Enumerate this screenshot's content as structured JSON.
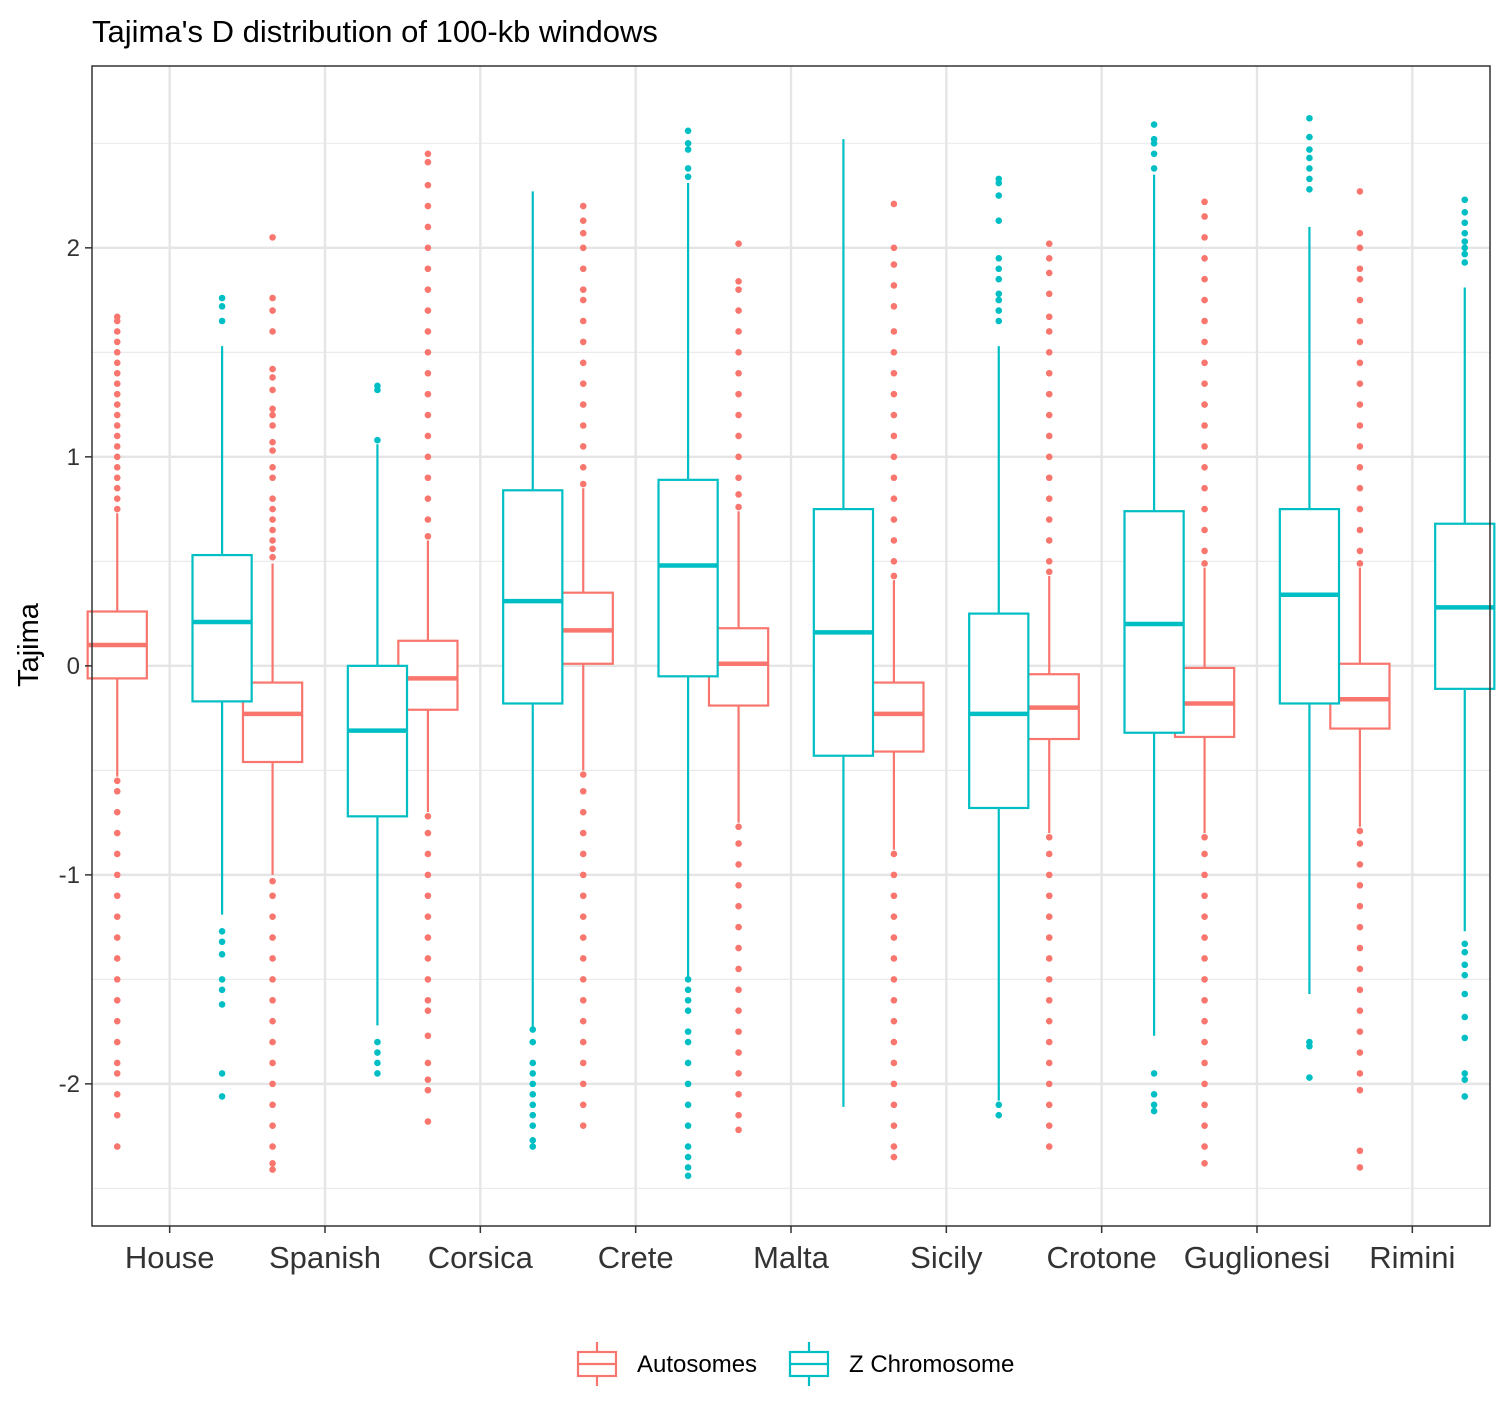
{
  "chart_data": {
    "type": "boxplot",
    "title": "Tajima's D distribution of 100-kb windows",
    "xlabel": "",
    "ylabel": "Tajima",
    "ylim": [
      -2.68,
      2.87
    ],
    "yticks": [
      -2,
      -1,
      0,
      1,
      2
    ],
    "ytick_labels": [
      "-2",
      "-1",
      "0",
      "1",
      "2"
    ],
    "grid": true,
    "legend_position": "bottom",
    "categories": [
      "House",
      "Spanish",
      "Corsica",
      "Crete",
      "Malta",
      "Sicily",
      "Crotone",
      "Guglionesi",
      "Rimini"
    ],
    "series": [
      {
        "name": "Autosomes",
        "color": "#F8766D",
        "boxes": [
          {
            "min": -0.53,
            "q1": -0.06,
            "median": 0.1,
            "q3": 0.26,
            "max": 0.73,
            "outliers_high": [
              0.75,
              0.8,
              0.85,
              0.9,
              0.95,
              1.0,
              1.05,
              1.1,
              1.15,
              1.2,
              1.25,
              1.3,
              1.35,
              1.4,
              1.45,
              1.5,
              1.55,
              1.6,
              1.65,
              1.67
            ],
            "outliers_low": [
              -0.55,
              -0.6,
              -0.7,
              -0.8,
              -0.9,
              -1.0,
              -1.1,
              -1.2,
              -1.3,
              -1.4,
              -1.5,
              -1.6,
              -1.7,
              -1.8,
              -1.9,
              -1.95,
              -2.05,
              -2.15,
              -2.3
            ]
          },
          {
            "min": -1.0,
            "q1": -0.46,
            "median": -0.23,
            "q3": -0.08,
            "max": 0.49,
            "outliers_high": [
              0.52,
              0.56,
              0.6,
              0.65,
              0.7,
              0.75,
              0.8,
              0.9,
              0.95,
              1.03,
              1.07,
              1.15,
              1.2,
              1.23,
              1.32,
              1.38,
              1.42,
              1.6,
              1.7,
              1.76,
              2.05
            ],
            "outliers_low": [
              -1.03,
              -1.1,
              -1.2,
              -1.3,
              -1.4,
              -1.5,
              -1.6,
              -1.7,
              -1.8,
              -1.9,
              -2.0,
              -2.1,
              -2.2,
              -2.3,
              -2.38,
              -2.41
            ]
          },
          {
            "min": -0.7,
            "q1": -0.21,
            "median": -0.06,
            "q3": 0.12,
            "max": 0.6,
            "outliers_high": [
              0.62,
              0.7,
              0.8,
              0.9,
              1.0,
              1.1,
              1.2,
              1.3,
              1.4,
              1.5,
              1.6,
              1.7,
              1.8,
              1.9,
              2.0,
              2.1,
              2.2,
              2.3,
              2.41,
              2.45
            ],
            "outliers_low": [
              -0.72,
              -0.8,
              -0.9,
              -1.0,
              -1.1,
              -1.2,
              -1.3,
              -1.4,
              -1.5,
              -1.6,
              -1.65,
              -1.77,
              -1.9,
              -1.98,
              -2.03,
              -2.18
            ]
          },
          {
            "min": -0.5,
            "q1": 0.01,
            "median": 0.17,
            "q3": 0.35,
            "max": 0.85,
            "outliers_high": [
              0.87,
              0.95,
              1.05,
              1.15,
              1.25,
              1.35,
              1.45,
              1.55,
              1.65,
              1.75,
              1.8,
              1.9,
              2.0,
              2.07,
              2.13,
              2.2
            ],
            "outliers_low": [
              -0.52,
              -0.6,
              -0.7,
              -0.8,
              -0.9,
              -1.0,
              -1.1,
              -1.2,
              -1.3,
              -1.4,
              -1.5,
              -1.6,
              -1.7,
              -1.8,
              -1.9,
              -2.0,
              -2.1,
              -2.2
            ]
          },
          {
            "min": -0.75,
            "q1": -0.19,
            "median": 0.01,
            "q3": 0.18,
            "max": 0.74,
            "outliers_high": [
              0.76,
              0.82,
              0.9,
              1.0,
              1.1,
              1.2,
              1.3,
              1.4,
              1.5,
              1.6,
              1.7,
              1.8,
              1.84,
              2.02
            ],
            "outliers_low": [
              -0.77,
              -0.85,
              -0.95,
              -1.05,
              -1.15,
              -1.25,
              -1.35,
              -1.45,
              -1.55,
              -1.65,
              -1.75,
              -1.85,
              -1.95,
              -2.05,
              -2.15,
              -2.22
            ]
          },
          {
            "min": -0.88,
            "q1": -0.41,
            "median": -0.23,
            "q3": -0.08,
            "max": 0.41,
            "outliers_high": [
              0.43,
              0.5,
              0.6,
              0.7,
              0.8,
              0.9,
              1.0,
              1.1,
              1.2,
              1.3,
              1.4,
              1.5,
              1.6,
              1.72,
              1.82,
              1.92,
              2.0,
              2.21
            ],
            "outliers_low": [
              -0.9,
              -1.0,
              -1.1,
              -1.2,
              -1.3,
              -1.4,
              -1.5,
              -1.6,
              -1.7,
              -1.8,
              -1.9,
              -2.0,
              -2.1,
              -2.2,
              -2.3,
              -2.35
            ]
          },
          {
            "min": -0.8,
            "q1": -0.35,
            "median": -0.2,
            "q3": -0.04,
            "max": 0.43,
            "outliers_high": [
              0.45,
              0.5,
              0.6,
              0.7,
              0.8,
              0.9,
              1.0,
              1.1,
              1.2,
              1.3,
              1.4,
              1.5,
              1.6,
              1.67,
              1.78,
              1.88,
              1.95,
              2.02
            ],
            "outliers_low": [
              -0.82,
              -0.9,
              -1.0,
              -1.1,
              -1.2,
              -1.3,
              -1.4,
              -1.5,
              -1.6,
              -1.7,
              -1.8,
              -1.9,
              -2.0,
              -2.1,
              -2.2,
              -2.3
            ]
          },
          {
            "min": -0.8,
            "q1": -0.34,
            "median": -0.18,
            "q3": -0.01,
            "max": 0.47,
            "outliers_high": [
              0.49,
              0.55,
              0.65,
              0.75,
              0.85,
              0.95,
              1.05,
              1.15,
              1.25,
              1.35,
              1.45,
              1.55,
              1.65,
              1.75,
              1.85,
              1.95,
              2.05,
              2.15,
              2.22
            ],
            "outliers_low": [
              -0.82,
              -0.9,
              -1.0,
              -1.1,
              -1.2,
              -1.3,
              -1.4,
              -1.5,
              -1.6,
              -1.7,
              -1.8,
              -1.9,
              -2.0,
              -2.1,
              -2.2,
              -2.3,
              -2.38
            ]
          },
          {
            "min": -0.77,
            "q1": -0.3,
            "median": -0.16,
            "q3": 0.01,
            "max": 0.47,
            "outliers_high": [
              0.49,
              0.55,
              0.65,
              0.75,
              0.85,
              0.95,
              1.05,
              1.15,
              1.25,
              1.35,
              1.45,
              1.55,
              1.65,
              1.75,
              1.85,
              1.9,
              2.0,
              2.07,
              2.27
            ],
            "outliers_low": [
              -0.79,
              -0.85,
              -0.95,
              -1.05,
              -1.15,
              -1.25,
              -1.35,
              -1.45,
              -1.55,
              -1.65,
              -1.75,
              -1.85,
              -1.95,
              -2.03,
              -2.32,
              -2.4
            ]
          }
        ]
      },
      {
        "name": "Z Chromosome",
        "color": "#00BFC4",
        "boxes": [
          {
            "min": -1.19,
            "q1": -0.17,
            "median": 0.21,
            "q3": 0.53,
            "max": 1.53,
            "outliers_high": [
              1.65,
              1.72,
              1.76
            ],
            "outliers_low": [
              -1.27,
              -1.32,
              -1.38,
              -1.5,
              -1.55,
              -1.62,
              -1.95,
              -2.06
            ]
          },
          {
            "min": -1.72,
            "q1": -0.72,
            "median": -0.31,
            "q3": 0.0,
            "max": 1.06,
            "outliers_high": [
              1.08,
              1.32,
              1.34
            ],
            "outliers_low": [
              -1.8,
              -1.85,
              -1.9,
              -1.95
            ]
          },
          {
            "min": -1.73,
            "q1": -0.18,
            "median": 0.31,
            "q3": 0.84,
            "max": 2.27,
            "outliers_high": [],
            "outliers_low": [
              -1.74,
              -1.8,
              -1.9,
              -1.95,
              -2.0,
              -2.05,
              -2.1,
              -2.15,
              -2.2,
              -2.27,
              -2.3
            ]
          },
          {
            "min": -1.5,
            "q1": -0.05,
            "median": 0.48,
            "q3": 0.89,
            "max": 2.31,
            "outliers_high": [
              2.34,
              2.38,
              2.47,
              2.5,
              2.56
            ],
            "outliers_low": [
              -1.5,
              -1.55,
              -1.6,
              -1.65,
              -1.75,
              -1.8,
              -1.9,
              -2.0,
              -2.1,
              -2.2,
              -2.3,
              -2.35,
              -2.4,
              -2.44
            ]
          },
          {
            "min": -2.11,
            "q1": -0.43,
            "median": 0.16,
            "q3": 0.75,
            "max": 2.52,
            "outliers_high": [],
            "outliers_low": []
          },
          {
            "min": -2.08,
            "q1": -0.68,
            "median": -0.23,
            "q3": 0.25,
            "max": 1.53,
            "outliers_high": [
              1.65,
              1.7,
              1.75,
              1.78,
              1.85,
              1.9,
              1.95,
              2.13,
              2.25,
              2.31,
              2.33
            ],
            "outliers_low": [
              -2.1,
              -2.15
            ]
          },
          {
            "min": -1.77,
            "q1": -0.32,
            "median": 0.2,
            "q3": 0.74,
            "max": 2.35,
            "outliers_high": [
              2.38,
              2.45,
              2.5,
              2.52,
              2.59
            ],
            "outliers_low": [
              -1.95,
              -2.05,
              -2.1,
              -2.13
            ]
          },
          {
            "min": -1.57,
            "q1": -0.18,
            "median": 0.34,
            "q3": 0.75,
            "max": 2.1,
            "outliers_high": [
              2.28,
              2.33,
              2.38,
              2.43,
              2.47,
              2.53,
              2.62
            ],
            "outliers_low": [
              -1.8,
              -1.82,
              -1.97
            ]
          },
          {
            "min": -1.27,
            "q1": -0.11,
            "median": 0.28,
            "q3": 0.68,
            "max": 1.81,
            "outliers_high": [
              1.93,
              1.97,
              2.0,
              2.03,
              2.07,
              2.12,
              2.17,
              2.23
            ],
            "outliers_low": [
              -1.33,
              -1.37,
              -1.43,
              -1.48,
              -1.57,
              -1.68,
              -1.78,
              -1.95,
              -1.98,
              -2.06
            ]
          }
        ]
      }
    ]
  }
}
